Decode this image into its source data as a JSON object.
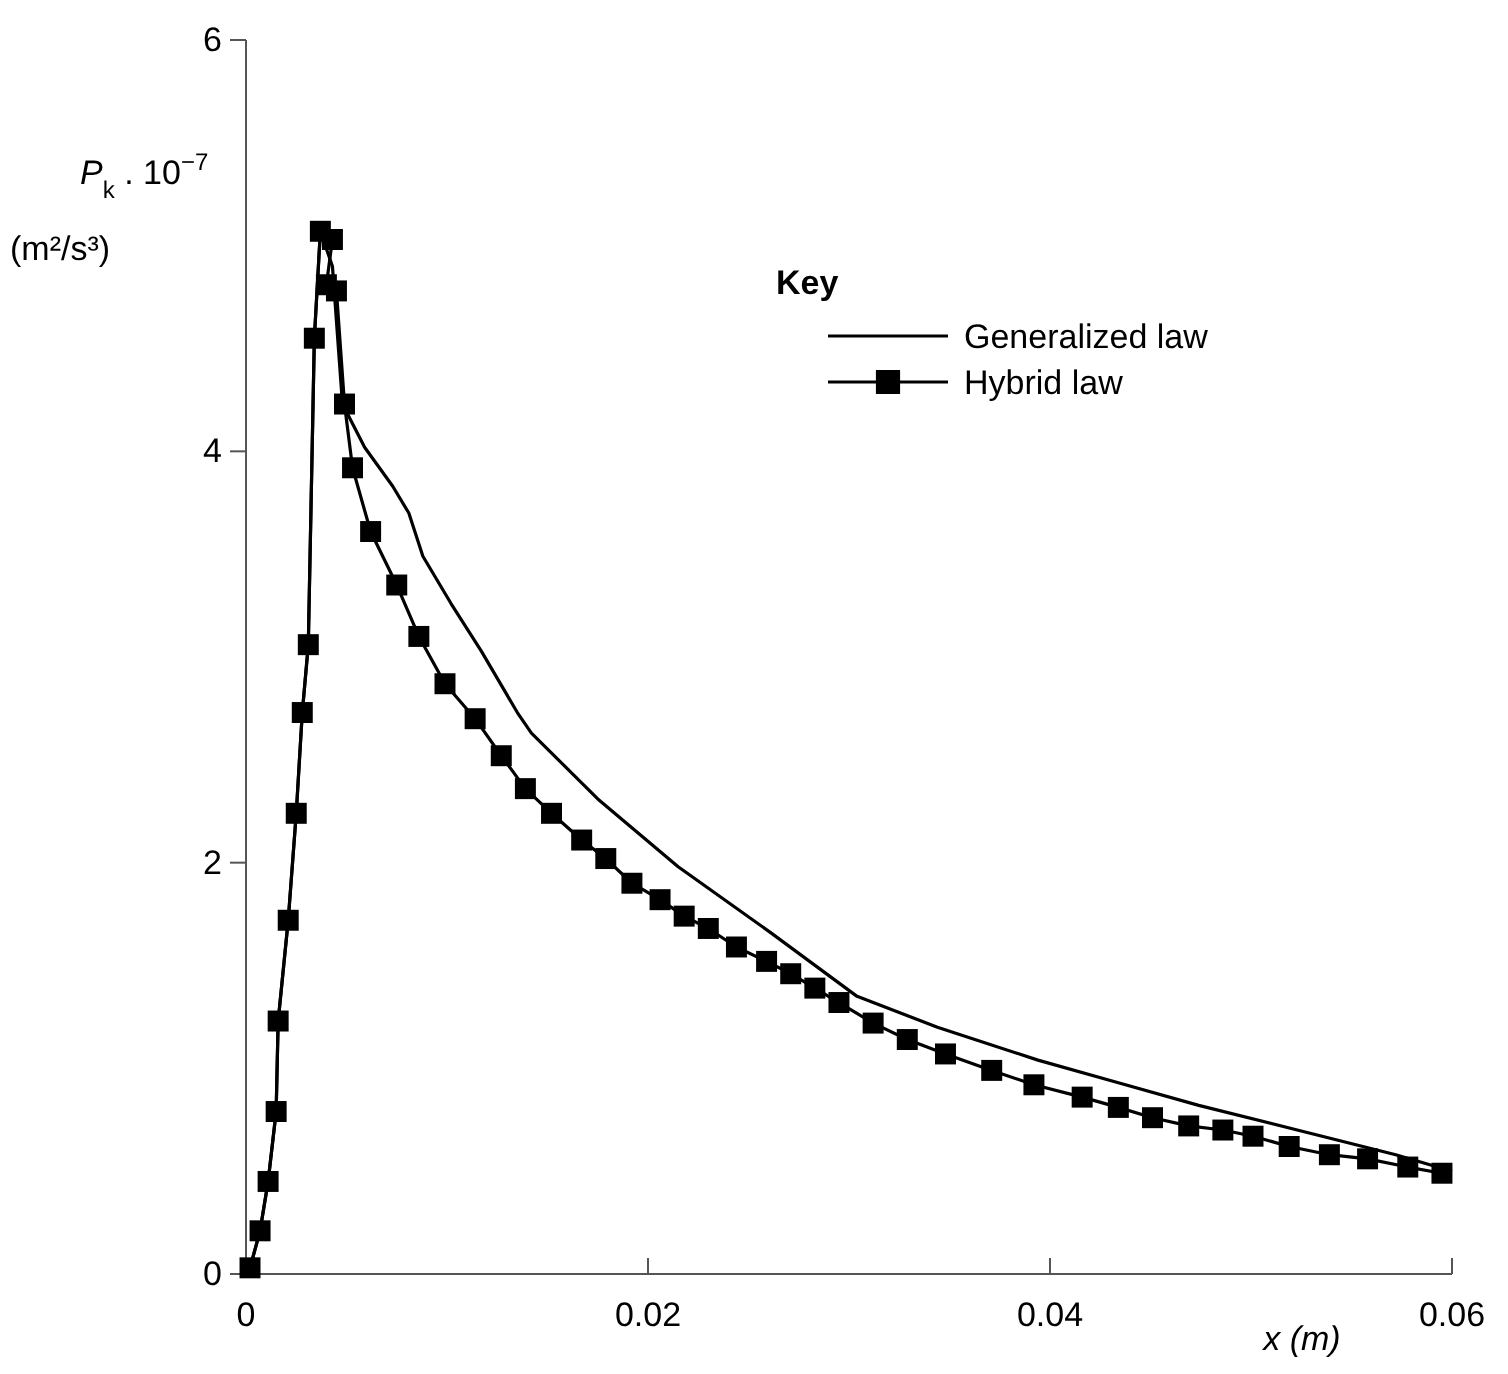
{
  "chart_data": {
    "type": "line",
    "xlabel": "x (m)",
    "ylabel": "P$_{k}$ . 10$^{−7}$\n(m²/s³)",
    "legend_title": "Key",
    "legend": "top right",
    "grid": false,
    "line_style": "solid",
    "xlim": [
      0,
      0.06
    ],
    "ylim": [
      0,
      6
    ],
    "xticks": [
      0,
      0.02,
      0.04,
      0.06
    ],
    "yticks": [
      0,
      2,
      4,
      6
    ],
    "series": [
      {
        "name": "Generalized law",
        "color": "#000000",
        "marker": "none",
        "x": [
          0.0002,
          0.0007,
          0.0011,
          0.0015,
          0.0016,
          0.0021,
          0.0025,
          0.0028,
          0.0031,
          0.0034,
          0.0037,
          0.0043,
          0.0048,
          0.0059,
          0.0073,
          0.0081,
          0.0088,
          0.0102,
          0.0117,
          0.0135,
          0.0142,
          0.0175,
          0.0215,
          0.0261,
          0.0304,
          0.0344,
          0.0394,
          0.0434,
          0.0474,
          0.0523,
          0.0572,
          0.06
        ],
        "values": [
          0.03,
          0.21,
          0.45,
          0.79,
          1.23,
          1.72,
          2.24,
          2.73,
          3.06,
          4.55,
          5.07,
          4.9,
          4.23,
          4.02,
          3.83,
          3.7,
          3.49,
          3.26,
          3.03,
          2.73,
          2.63,
          2.31,
          1.98,
          1.66,
          1.35,
          1.2,
          1.04,
          0.93,
          0.82,
          0.7,
          0.58,
          0.5
        ]
      },
      {
        "name": "Hybrid law",
        "color": "#000000",
        "marker": "square",
        "x": [
          0.0002,
          0.0007,
          0.0011,
          0.0015,
          0.0016,
          0.0021,
          0.0025,
          0.0028,
          0.0031,
          0.0034,
          0.0037,
          0.0043,
          0.004,
          0.0045,
          0.0049,
          0.0053,
          0.0062,
          0.0075,
          0.0086,
          0.0099,
          0.0114,
          0.0127,
          0.0139,
          0.0152,
          0.0167,
          0.0179,
          0.0192,
          0.0206,
          0.0218,
          0.023,
          0.0244,
          0.0259,
          0.0271,
          0.0283,
          0.0295,
          0.0312,
          0.0329,
          0.0348,
          0.0371,
          0.0392,
          0.0416,
          0.0434,
          0.0451,
          0.0469,
          0.0486,
          0.0501,
          0.0519,
          0.0539,
          0.0558,
          0.0578,
          0.0595
        ],
        "values": [
          0.03,
          0.21,
          0.45,
          0.79,
          1.23,
          1.72,
          2.24,
          2.73,
          3.06,
          4.55,
          5.07,
          5.03,
          4.81,
          4.78,
          4.23,
          3.92,
          3.61,
          3.35,
          3.1,
          2.87,
          2.7,
          2.52,
          2.36,
          2.24,
          2.11,
          2.02,
          1.9,
          1.82,
          1.74,
          1.68,
          1.59,
          1.52,
          1.46,
          1.39,
          1.32,
          1.22,
          1.14,
          1.07,
          0.99,
          0.92,
          0.86,
          0.81,
          0.76,
          0.72,
          0.7,
          0.67,
          0.62,
          0.58,
          0.56,
          0.52,
          0.49
        ]
      }
    ]
  }
}
